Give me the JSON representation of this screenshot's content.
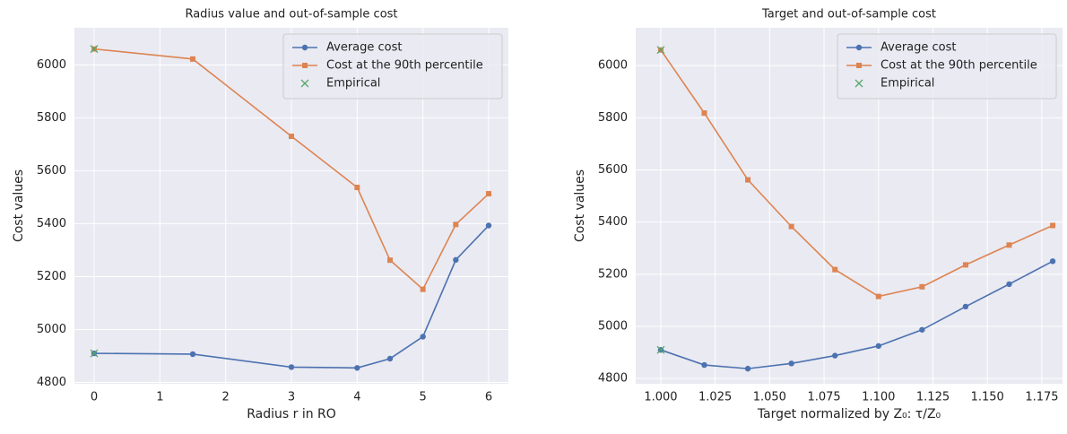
{
  "chart_data": [
    {
      "type": "line",
      "title": "Radius value and out-of-sample cost",
      "xlabel": "Radius r in RO",
      "ylabel": "Cost values",
      "x": [
        0,
        1.5,
        3,
        4,
        4.5,
        5,
        5.5,
        6
      ],
      "xlim": [
        -0.3,
        6.3
      ],
      "xticks": [
        0,
        1,
        2,
        3,
        4,
        5,
        6
      ],
      "ylim": [
        4795,
        6140
      ],
      "yticks": [
        4800,
        5000,
        5200,
        5400,
        5600,
        5800,
        6000
      ],
      "grid": true,
      "legend": "upper right",
      "series": [
        {
          "name": "Average cost",
          "color": "#4C72B0",
          "marker": "o",
          "values": [
            4910,
            4907,
            4858,
            4855,
            4890,
            4973,
            5263,
            5393
          ]
        },
        {
          "name": "Cost at the 90th percentile",
          "color": "#DD8452",
          "marker": "s",
          "values": [
            6060,
            6022,
            5730,
            5537,
            5262,
            5152,
            5397,
            5513
          ]
        },
        {
          "name": "Empirical",
          "color": "#55A868",
          "marker": "x",
          "x": [
            0,
            0
          ],
          "values": [
            6060,
            4910
          ]
        }
      ]
    },
    {
      "type": "line",
      "title": "Target and out-of-sample cost",
      "xlabel": "Target normalized by Z₀:  τ/Z₀",
      "ylabel": "Cost values",
      "x": [
        1.0,
        1.02,
        1.04,
        1.06,
        1.08,
        1.1,
        1.12,
        1.14,
        1.16,
        1.18
      ],
      "xlim": [
        0.9885,
        1.1845
      ],
      "xticks": [
        {
          "value": 1.0,
          "label": "1.000"
        },
        {
          "value": 1.025,
          "label": "1.025"
        },
        {
          "value": 1.05,
          "label": "1.050"
        },
        {
          "value": 1.075,
          "label": "1.075"
        },
        {
          "value": 1.1,
          "label": "1.100"
        },
        {
          "value": 1.125,
          "label": "1.125"
        },
        {
          "value": 1.15,
          "label": "1.150"
        },
        {
          "value": 1.175,
          "label": "1.175"
        }
      ],
      "ylim": [
        4780,
        6145
      ],
      "yticks": [
        4800,
        5000,
        5200,
        5400,
        5600,
        5800,
        6000
      ],
      "grid": true,
      "legend": "upper right",
      "series": [
        {
          "name": "Average cost",
          "color": "#4C72B0",
          "marker": "o",
          "values": [
            4910,
            4852,
            4838,
            4858,
            4888,
            4925,
            4987,
            5076,
            5162,
            5250
          ]
        },
        {
          "name": "Cost at the 90th percentile",
          "color": "#DD8452",
          "marker": "s",
          "values": [
            6060,
            5818,
            5562,
            5383,
            5218,
            5115,
            5152,
            5236,
            5312,
            5387
          ]
        },
        {
          "name": "Empirical",
          "color": "#55A868",
          "marker": "x",
          "x": [
            1.0,
            1.0
          ],
          "values": [
            6060,
            4910
          ]
        }
      ]
    }
  ]
}
